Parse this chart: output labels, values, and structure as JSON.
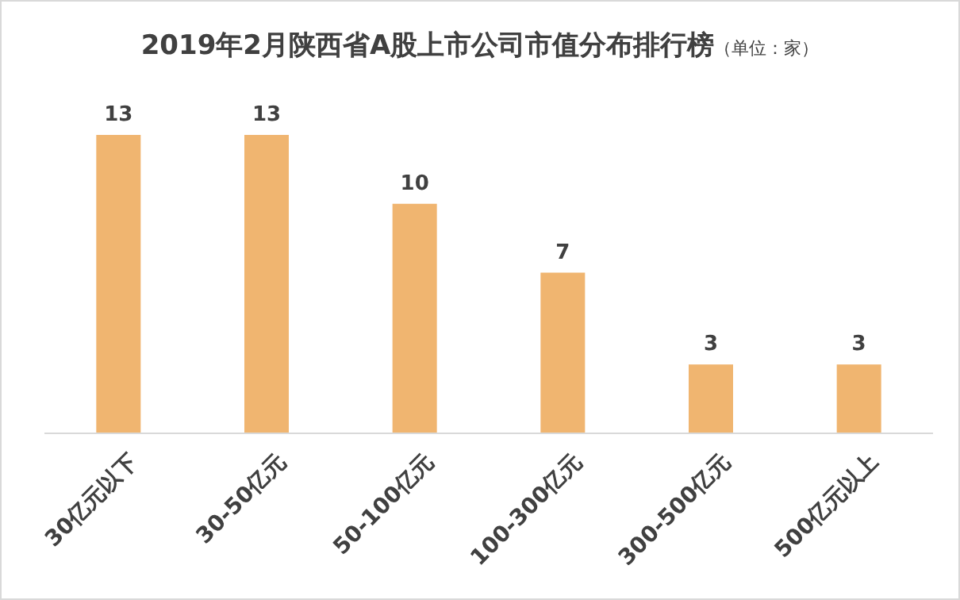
{
  "chart_data": {
    "type": "bar",
    "title": "2019年2月陕西省A股上市公司市值分布排行榜",
    "subtitle": "（单位：家）",
    "categories": [
      "30亿元以下",
      "30-50亿元",
      "50-100亿元",
      "100-300亿元",
      "300-500亿元",
      "500亿元以上"
    ],
    "values": [
      13,
      13,
      10,
      7,
      3,
      3
    ],
    "color": "#f0b570",
    "data_labels": true
  }
}
